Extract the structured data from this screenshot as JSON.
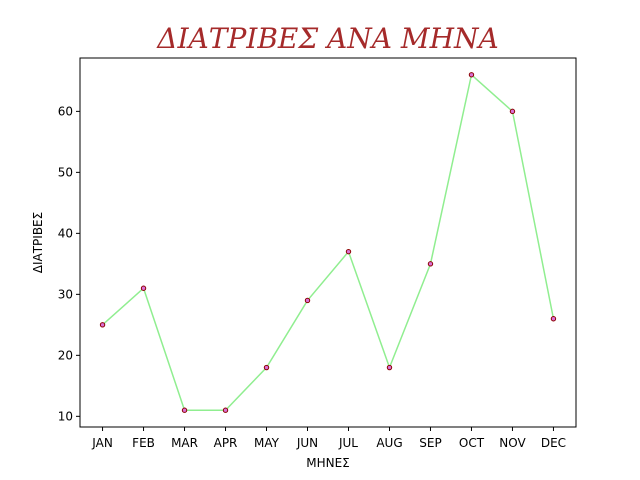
{
  "chart_data": {
    "type": "line",
    "title": "ΔΙΑΤΡΙΒΕΣ ΑΝΑ ΜΗΝΑ",
    "xlabel": "ΜΗΝΕΣ",
    "ylabel": "ΔΙΑΤΡΙΒΕΣ",
    "categories": [
      "JAN",
      "FEB",
      "MAR",
      "APR",
      "MAY",
      "JUN",
      "JUL",
      "AUG",
      "SEP",
      "OCT",
      "NOV",
      "DEC"
    ],
    "series": [
      {
        "values": [
          25,
          31,
          11,
          11,
          18,
          29,
          37,
          18,
          35,
          66,
          60,
          26
        ]
      }
    ],
    "yticks": [
      10,
      20,
      30,
      40,
      50,
      60
    ],
    "ylim": [
      8.25,
      68.75
    ],
    "grid": false,
    "colors": {
      "title": "#a52a2a",
      "line": "#90ee90",
      "marker_fill": "#da70d6",
      "marker_edge": "#8b0000",
      "axis": "#000000"
    }
  }
}
